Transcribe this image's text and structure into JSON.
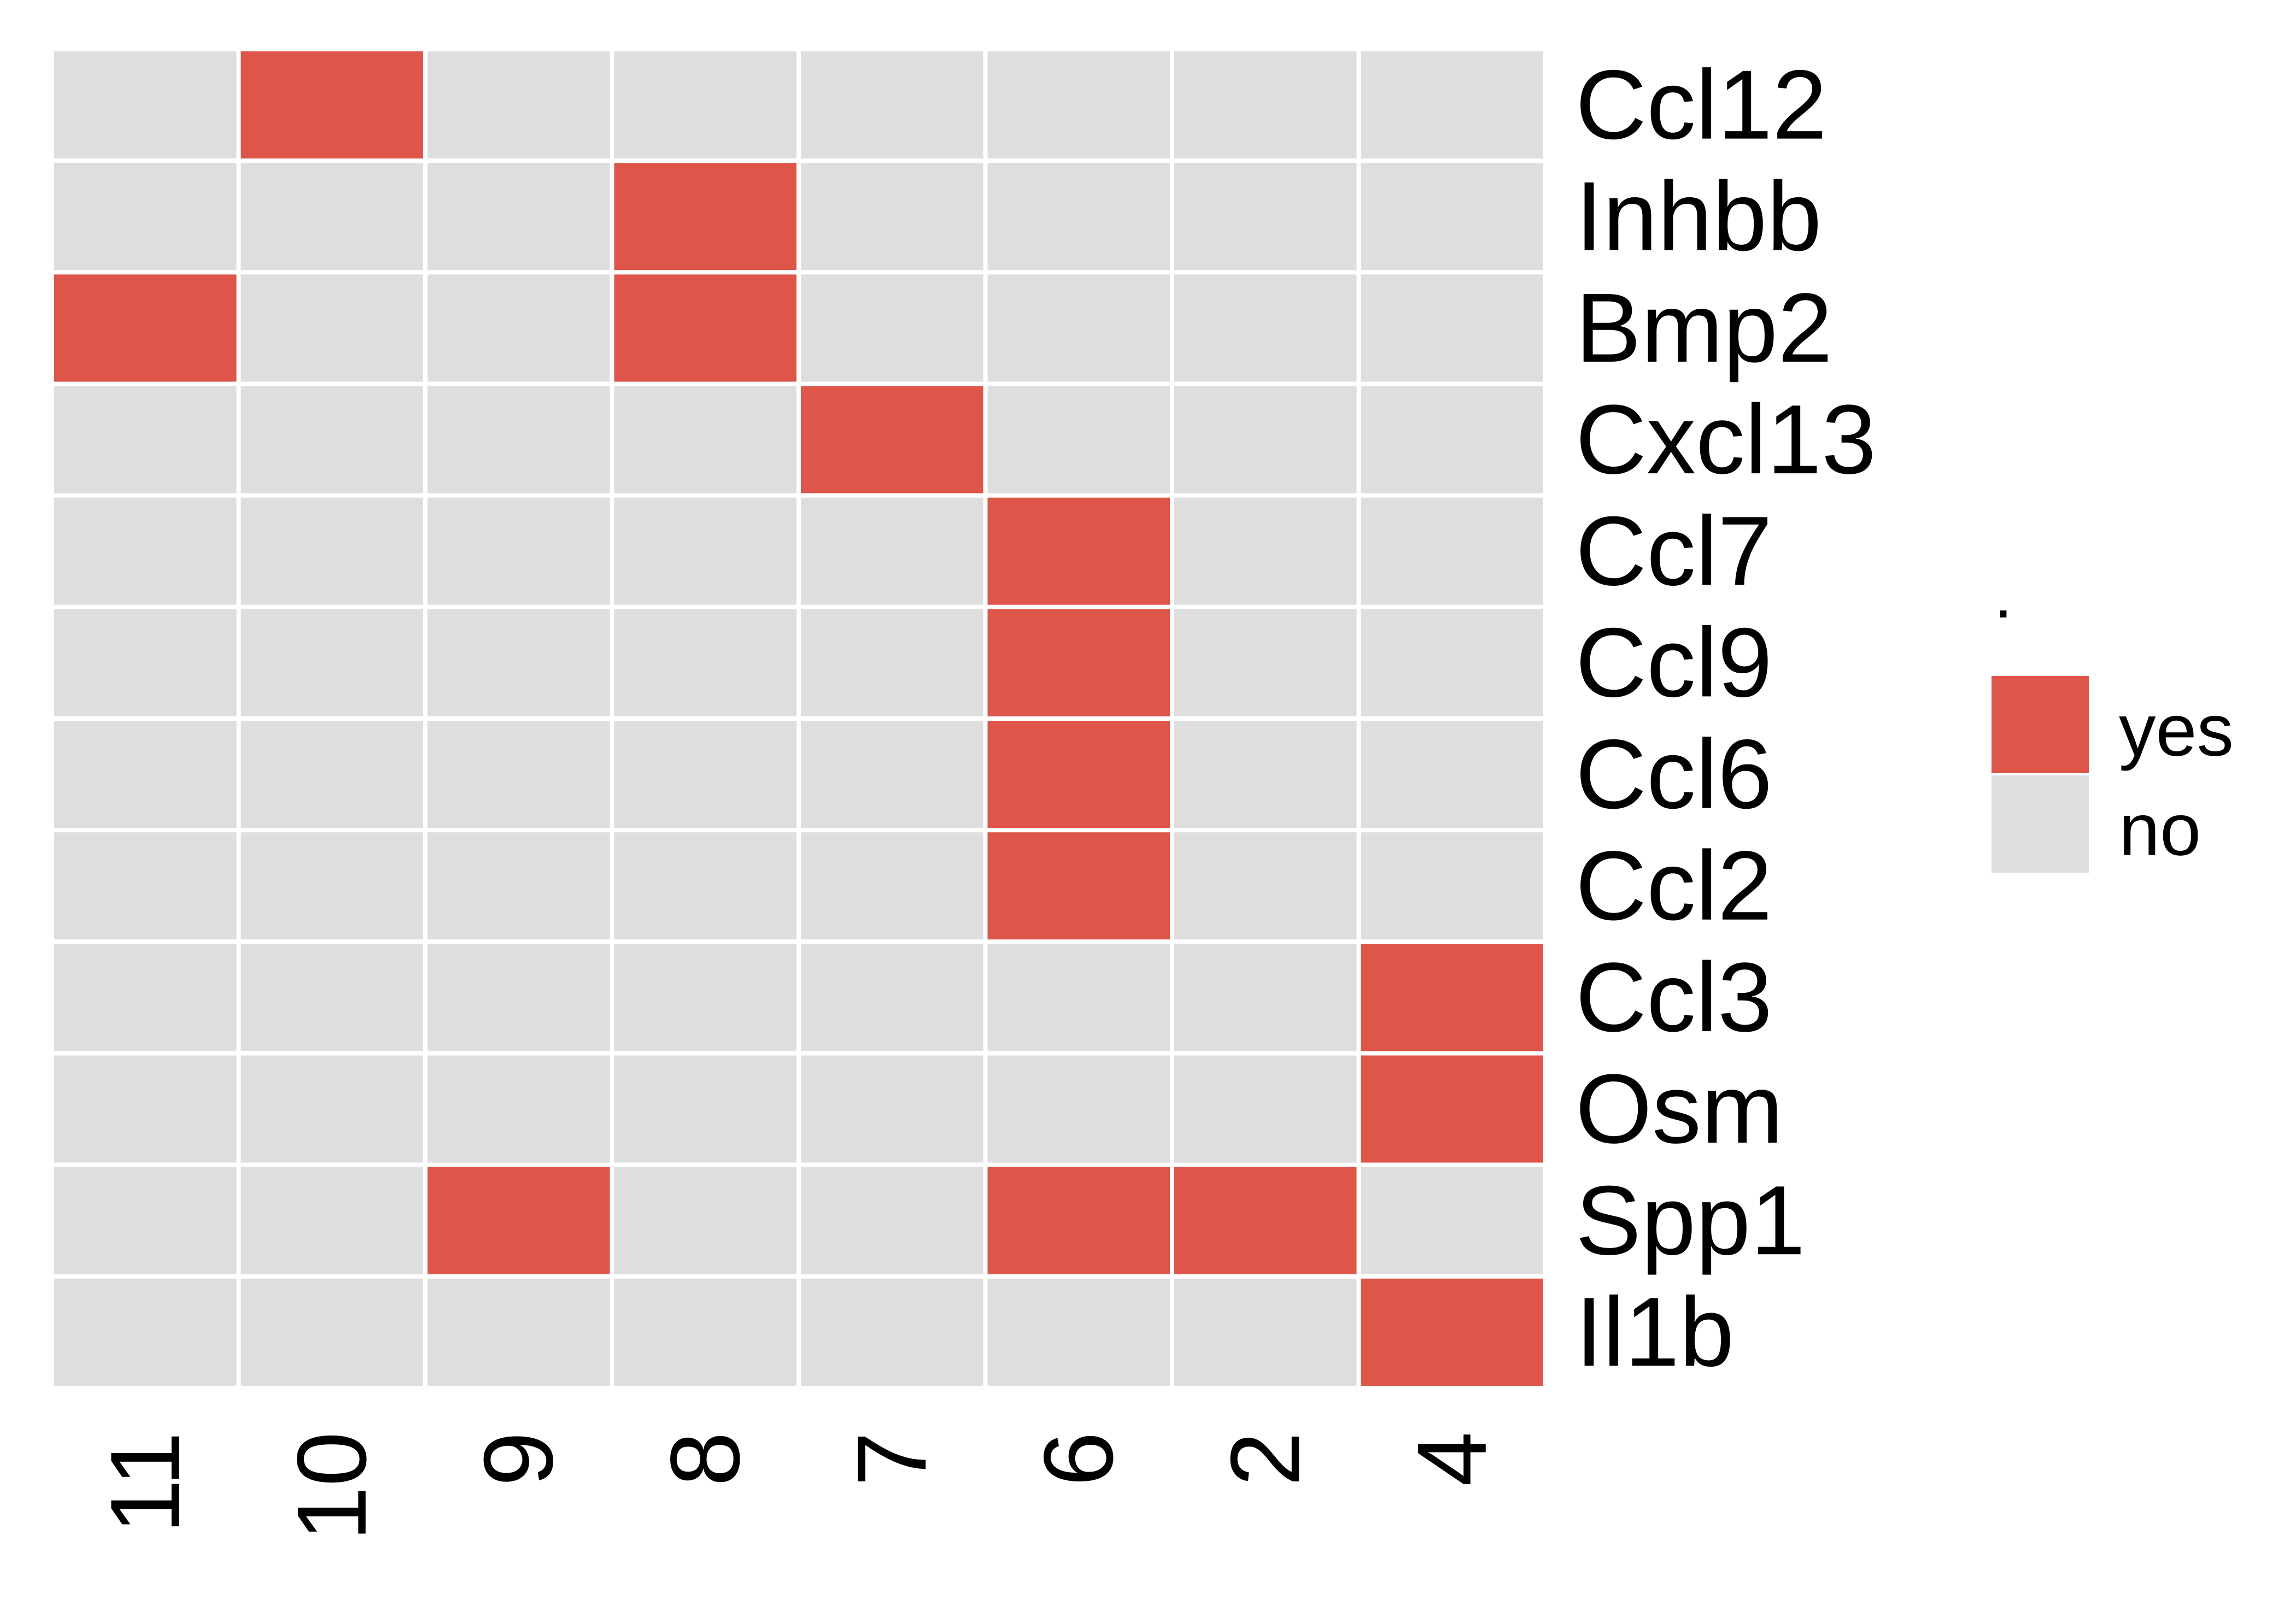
{
  "chart_data": {
    "type": "heatmap",
    "title": "",
    "xlabel": "",
    "ylabel": "",
    "x_categories": [
      "11",
      "10",
      "9",
      "8",
      "7",
      "6",
      "2",
      "4"
    ],
    "y_categories": [
      "Ccl12",
      "Inhbb",
      "Bmp2",
      "Cxcl13",
      "Ccl7",
      "Ccl9",
      "Ccl6",
      "Ccl2",
      "Ccl3",
      "Osm",
      "Spp1",
      "Il1b"
    ],
    "values": [
      [
        "no",
        "yes",
        "no",
        "no",
        "no",
        "no",
        "no",
        "no"
      ],
      [
        "no",
        "no",
        "no",
        "yes",
        "no",
        "no",
        "no",
        "no"
      ],
      [
        "yes",
        "no",
        "no",
        "yes",
        "no",
        "no",
        "no",
        "no"
      ],
      [
        "no",
        "no",
        "no",
        "no",
        "yes",
        "no",
        "no",
        "no"
      ],
      [
        "no",
        "no",
        "no",
        "no",
        "no",
        "yes",
        "no",
        "no"
      ],
      [
        "no",
        "no",
        "no",
        "no",
        "no",
        "yes",
        "no",
        "no"
      ],
      [
        "no",
        "no",
        "no",
        "no",
        "no",
        "yes",
        "no",
        "no"
      ],
      [
        "no",
        "no",
        "no",
        "no",
        "no",
        "yes",
        "no",
        "no"
      ],
      [
        "no",
        "no",
        "no",
        "no",
        "no",
        "no",
        "no",
        "yes"
      ],
      [
        "no",
        "no",
        "no",
        "no",
        "no",
        "no",
        "no",
        "yes"
      ],
      [
        "no",
        "no",
        "yes",
        "no",
        "no",
        "yes",
        "yes",
        "no"
      ],
      [
        "no",
        "no",
        "no",
        "no",
        "no",
        "no",
        "no",
        "yes"
      ]
    ],
    "legend": {
      "title": ".",
      "position": "right",
      "entries": [
        {
          "label": "yes",
          "color": "#DE5549"
        },
        {
          "label": "no",
          "color": "#DEDEDE"
        }
      ]
    },
    "x_tick_label_orientation": "rotated-90",
    "y_tick_label_position": "right",
    "grid": false,
    "colors": {
      "yes": "#DE5549",
      "no": "#DEDEDE",
      "cell_border": "#FFFFFF",
      "background": "#FFFFFF"
    }
  }
}
